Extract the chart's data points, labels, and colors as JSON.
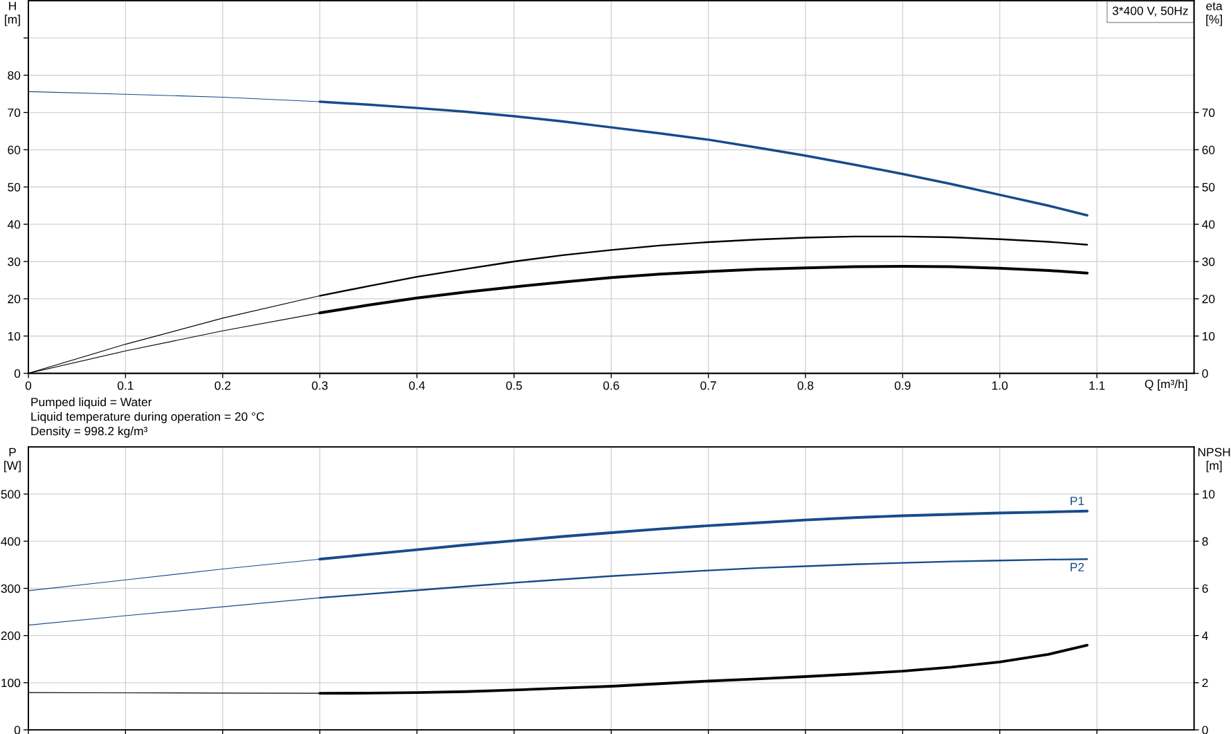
{
  "chart_data": [
    {
      "type": "line",
      "ylabel": "H\n[m]",
      "y2label": "eta\n[%]",
      "xlabel": "Q [m³/h]",
      "annotations": [
        "3*400 V, 50Hz",
        "Pumped liquid = Water",
        "Liquid temperature during operation = 20 °C",
        "Density = 998.2 kg/m³"
      ],
      "xlim": [
        0,
        1.2
      ],
      "xticks": [
        0,
        0.1,
        0.2,
        0.3,
        0.4,
        0.5,
        0.6,
        0.7,
        0.8,
        0.9,
        {
          "value": 1,
          "label": "1.0"
        },
        1.1
      ],
      "ylim": [
        0,
        100
      ],
      "yticks": [
        0,
        10,
        20,
        30,
        40,
        50,
        60,
        70,
        80,
        {
          "value": 90,
          "label": null
        }
      ],
      "y2lim": [
        0,
        100
      ],
      "y2ticks": [
        0,
        10,
        20,
        30,
        40,
        50,
        60,
        70
      ],
      "grid": true,
      "series": [
        {
          "color": "#174b8c",
          "x": [
            0,
            0.1,
            0.2,
            0.3
          ],
          "values": [
            75.6,
            74.9,
            74.1,
            72.9
          ]
        },
        {
          "color": "#174b8c",
          "x": [
            0.3,
            0.35,
            0.4,
            0.45,
            0.5,
            0.55,
            0.6,
            0.65,
            0.7,
            0.75,
            0.8,
            0.85,
            0.9,
            0.95,
            1.0,
            1.05,
            1.09
          ],
          "values": [
            72.9,
            72.1,
            71.2,
            70.2,
            69.0,
            67.6,
            66.0,
            64.4,
            62.7,
            60.6,
            58.4,
            56.0,
            53.5,
            50.8,
            47.9,
            45.0,
            42.4
          ]
        },
        {
          "color": "#000000",
          "axis": "y2",
          "x": [
            0,
            0.1,
            0.2,
            0.3
          ],
          "values": [
            0,
            7.8,
            14.8,
            20.8
          ]
        },
        {
          "color": "#000000",
          "axis": "y2",
          "x": [
            0.3,
            0.35,
            0.4,
            0.45,
            0.5,
            0.55,
            0.6,
            0.65,
            0.7,
            0.75,
            0.8,
            0.85,
            0.9,
            0.95,
            1.0,
            1.05,
            1.09
          ],
          "values": [
            20.8,
            23.4,
            25.9,
            28.0,
            30.0,
            31.7,
            33.1,
            34.3,
            35.2,
            35.9,
            36.4,
            36.7,
            36.7,
            36.5,
            36.0,
            35.3,
            34.5
          ]
        },
        {
          "color": "#000000",
          "axis": "y2",
          "x": [
            0,
            0.1,
            0.2,
            0.3
          ],
          "values": [
            0,
            6.0,
            11.4,
            16.2
          ]
        },
        {
          "color": "#000000",
          "axis": "y2",
          "x": [
            0.3,
            0.35,
            0.4,
            0.45,
            0.5,
            0.55,
            0.6,
            0.65,
            0.7,
            0.75,
            0.8,
            0.85,
            0.9,
            0.95,
            1.0,
            1.05,
            1.09
          ],
          "values": [
            16.2,
            18.3,
            20.2,
            21.8,
            23.2,
            24.5,
            25.7,
            26.6,
            27.3,
            27.9,
            28.3,
            28.6,
            28.7,
            28.6,
            28.2,
            27.6,
            26.9
          ]
        }
      ]
    },
    {
      "type": "line",
      "ylabel": "P\n[W]",
      "y2label": "NPSH\n[m]",
      "xlim": [
        0,
        1.2
      ],
      "xticks": [
        0,
        0.1,
        0.2,
        0.3,
        0.4,
        0.5,
        0.6,
        0.7,
        0.8,
        0.9,
        1,
        1.1
      ],
      "ylim": [
        0,
        600
      ],
      "yticks": [
        0,
        100,
        200,
        300,
        400,
        500
      ],
      "y2lim": [
        0,
        12
      ],
      "y2ticks": [
        0,
        2,
        4,
        6,
        8,
        10
      ],
      "grid": true,
      "tick_labels": "y",
      "series": [
        {
          "color": "#174b8c",
          "x": [
            0,
            0.1,
            0.2,
            0.3
          ],
          "values": [
            295,
            318,
            341,
            362
          ]
        },
        {
          "name": "P1",
          "color": "#174b8c",
          "x": [
            0.3,
            0.35,
            0.4,
            0.45,
            0.5,
            0.55,
            0.6,
            0.65,
            0.7,
            0.75,
            0.8,
            0.85,
            0.9,
            0.95,
            1.0,
            1.05,
            1.09
          ],
          "values": [
            362,
            372,
            382,
            392,
            401,
            410,
            418,
            426,
            433,
            439,
            445,
            450,
            454,
            457,
            460,
            462,
            464
          ]
        },
        {
          "color": "#174b8c",
          "x": [
            0,
            0.1,
            0.2,
            0.3
          ],
          "values": [
            222,
            242,
            261,
            280
          ]
        },
        {
          "name": "P2",
          "color": "#174b8c",
          "x": [
            0.3,
            0.35,
            0.4,
            0.45,
            0.5,
            0.55,
            0.6,
            0.65,
            0.7,
            0.75,
            0.8,
            0.85,
            0.9,
            0.95,
            1.0,
            1.05,
            1.09
          ],
          "values": [
            280,
            288,
            296,
            304,
            312,
            319,
            326,
            332,
            338,
            343,
            347,
            351,
            354,
            357,
            359,
            361,
            362
          ]
        },
        {
          "color": "#000000",
          "axis": "y2",
          "x": [
            0,
            0.1,
            0.2,
            0.3
          ],
          "values": [
            1.58,
            1.57,
            1.56,
            1.55
          ]
        },
        {
          "color": "#000000",
          "axis": "y2",
          "x": [
            0.3,
            0.35,
            0.4,
            0.45,
            0.5,
            0.55,
            0.6,
            0.65,
            0.7,
            0.75,
            0.8,
            0.85,
            0.9,
            0.95,
            1.0,
            1.05,
            1.09
          ],
          "values": [
            1.55,
            1.56,
            1.58,
            1.62,
            1.69,
            1.77,
            1.85,
            1.96,
            2.07,
            2.16,
            2.26,
            2.37,
            2.49,
            2.66,
            2.88,
            3.2,
            3.59
          ]
        }
      ]
    }
  ]
}
